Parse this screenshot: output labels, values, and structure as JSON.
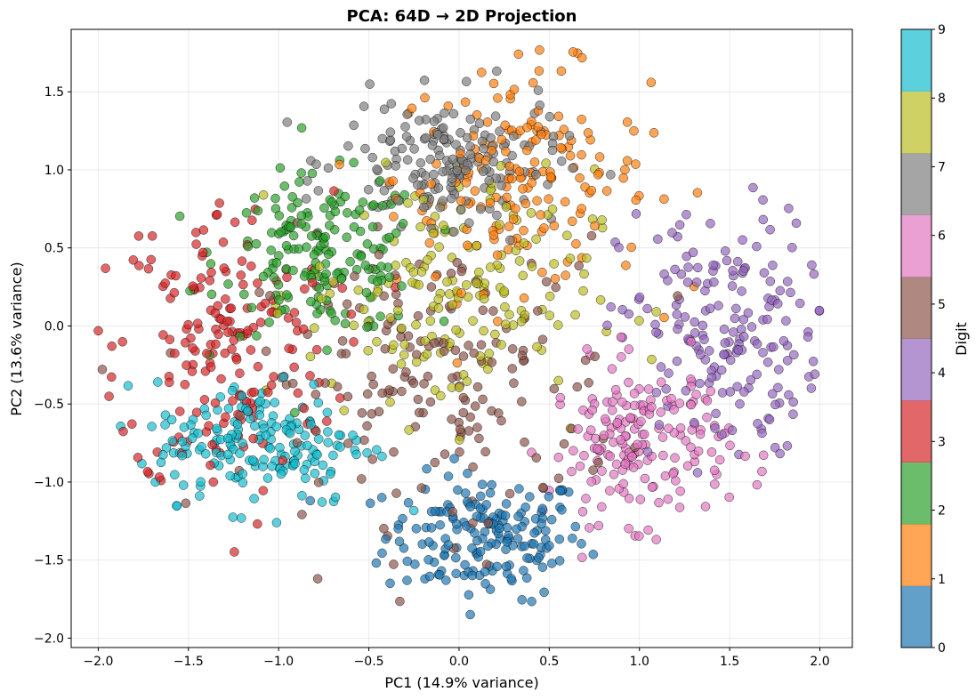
{
  "chart_data": {
    "type": "scatter",
    "title": "PCA: 64D → 2D Projection",
    "xlabel": "PC1 (14.9% variance)",
    "ylabel": "PC2 (13.6% variance)",
    "xlim": [
      -2.15,
      2.18
    ],
    "ylim": [
      -2.06,
      1.9
    ],
    "xticks": [
      -2.0,
      -1.5,
      -1.0,
      -0.5,
      0.0,
      0.5,
      1.0,
      1.5,
      2.0
    ],
    "xtick_labels": [
      "−2.0",
      "−1.5",
      "−1.0",
      "−0.5",
      "0.0",
      "0.5",
      "1.0",
      "1.5",
      "2.0"
    ],
    "yticks": [
      -2.0,
      -1.5,
      -1.0,
      -0.5,
      0.0,
      0.5,
      1.0,
      1.5
    ],
    "ytick_labels": [
      "−2.0",
      "−1.5",
      "−1.0",
      "−0.5",
      "0.0",
      "0.5",
      "1.0",
      "1.5"
    ],
    "grid": true,
    "marker_alpha": 0.7,
    "colorbar": {
      "label": "Digit",
      "ticks": [
        0,
        1,
        2,
        3,
        4,
        5,
        6,
        7,
        8,
        9
      ],
      "tick_labels": [
        "0",
        "1",
        "2",
        "3",
        "4",
        "5",
        "6",
        "7",
        "8",
        "9"
      ],
      "colors": [
        "#1f77b4",
        "#ff7f0e",
        "#2ca02c",
        "#d62728",
        "#9467bd",
        "#8c564b",
        "#e377c2",
        "#7f7f7f",
        "#bcbd22",
        "#17becf"
      ]
    },
    "series": [
      {
        "name": "0",
        "color": "#1f77b4",
        "center": [
          0.15,
          -1.35
        ],
        "spread": [
          0.28,
          0.2
        ],
        "n": 180
      },
      {
        "name": "1",
        "color": "#ff7f0e",
        "center": [
          0.35,
          0.95
        ],
        "spread": [
          0.35,
          0.35
        ],
        "n": 180
      },
      {
        "name": "2",
        "color": "#2ca02c",
        "center": [
          -0.75,
          0.45
        ],
        "spread": [
          0.28,
          0.25
        ],
        "n": 177
      },
      {
        "name": "3",
        "color": "#d62728",
        "center": [
          -1.3,
          -0.15
        ],
        "spread": [
          0.3,
          0.5
        ],
        "n": 183
      },
      {
        "name": "4",
        "color": "#9467bd",
        "center": [
          1.45,
          -0.05
        ],
        "spread": [
          0.28,
          0.4
        ],
        "n": 181
      },
      {
        "name": "5",
        "color": "#8c564b",
        "center": [
          -0.1,
          -0.35
        ],
        "spread": [
          0.5,
          0.45
        ],
        "n": 182
      },
      {
        "name": "6",
        "color": "#e377c2",
        "center": [
          1.0,
          -0.75
        ],
        "spread": [
          0.25,
          0.25
        ],
        "n": 181
      },
      {
        "name": "7",
        "color": "#7f7f7f",
        "center": [
          -0.05,
          1.05
        ],
        "spread": [
          0.3,
          0.2
        ],
        "n": 179
      },
      {
        "name": "8",
        "color": "#bcbd22",
        "center": [
          -0.05,
          0.2
        ],
        "spread": [
          0.4,
          0.4
        ],
        "n": 174
      },
      {
        "name": "9",
        "color": "#17becf",
        "center": [
          -1.1,
          -0.75
        ],
        "spread": [
          0.3,
          0.2
        ],
        "n": 180
      }
    ]
  }
}
